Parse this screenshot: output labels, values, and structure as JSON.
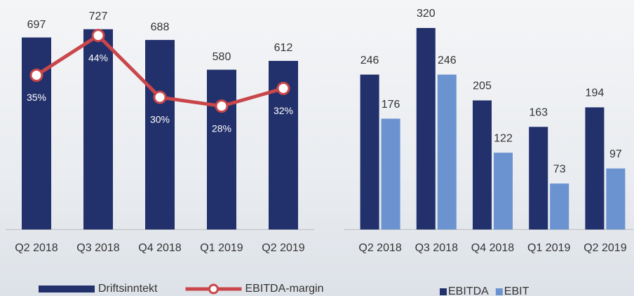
{
  "chart_data": [
    {
      "type": "combo",
      "categories": [
        "Q2 2018",
        "Q3 2018",
        "Q4 2018",
        "Q1 2019",
        "Q2 2019"
      ],
      "series": [
        {
          "name": "Driftsinntekt",
          "color": "#22306b",
          "type": "bar",
          "values": [
            697,
            727,
            688,
            580,
            612
          ]
        },
        {
          "name": "EBITDA-margin",
          "color": "#c9474a",
          "type": "line",
          "axis": "y2",
          "values": [
            35,
            44,
            30,
            28,
            32
          ],
          "value_labels": [
            "35%",
            "44%",
            "30%",
            "28%",
            "32%"
          ]
        }
      ],
      "ylim": [
        0,
        800
      ],
      "y2lim": [
        0,
        50
      ],
      "legend": "bottom"
    },
    {
      "type": "bar",
      "categories": [
        "Q2 2018",
        "Q3 2018",
        "Q4 2018",
        "Q1 2019",
        "Q2 2019"
      ],
      "series": [
        {
          "name": "EBITDA",
          "color": "#22306b",
          "values": [
            246,
            320,
            205,
            163,
            194
          ]
        },
        {
          "name": "EBIT",
          "color": "#6a93d0",
          "values": [
            176,
            246,
            122,
            73,
            97
          ]
        }
      ],
      "ylim": [
        0,
        350
      ],
      "legend": "bottom"
    }
  ]
}
